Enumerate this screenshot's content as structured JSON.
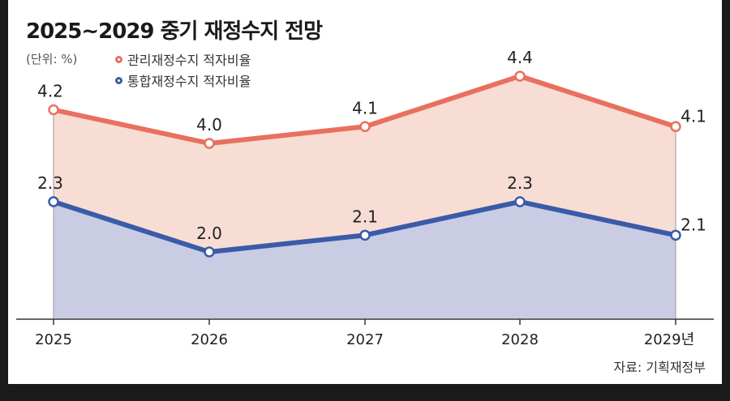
{
  "title": "2025~2029 중기 재정수지 전망",
  "unit": "(단위: %)",
  "source": "자료: 기획재정부",
  "chart_data": {
    "type": "area",
    "categories": [
      "2025",
      "2026",
      "2027",
      "2028",
      "2029년"
    ],
    "series": [
      {
        "name": "관리재정수지 적자비율",
        "values": [
          4.2,
          4.0,
          4.1,
          4.4,
          4.1
        ],
        "labels": [
          "4.2",
          "4.0",
          "4.1",
          "4.4",
          "4.1"
        ],
        "color": "#e8705f",
        "fill": "#f7ddd3"
      },
      {
        "name": "통합재정수지 적자비율",
        "values": [
          2.3,
          2.0,
          2.1,
          2.3,
          2.1
        ],
        "labels": [
          "2.3",
          "2.0",
          "2.1",
          "2.3",
          "2.1"
        ],
        "color": "#3a5ba8",
        "fill": "#c9cce3"
      }
    ],
    "legend": "top-left",
    "grid": false
  }
}
